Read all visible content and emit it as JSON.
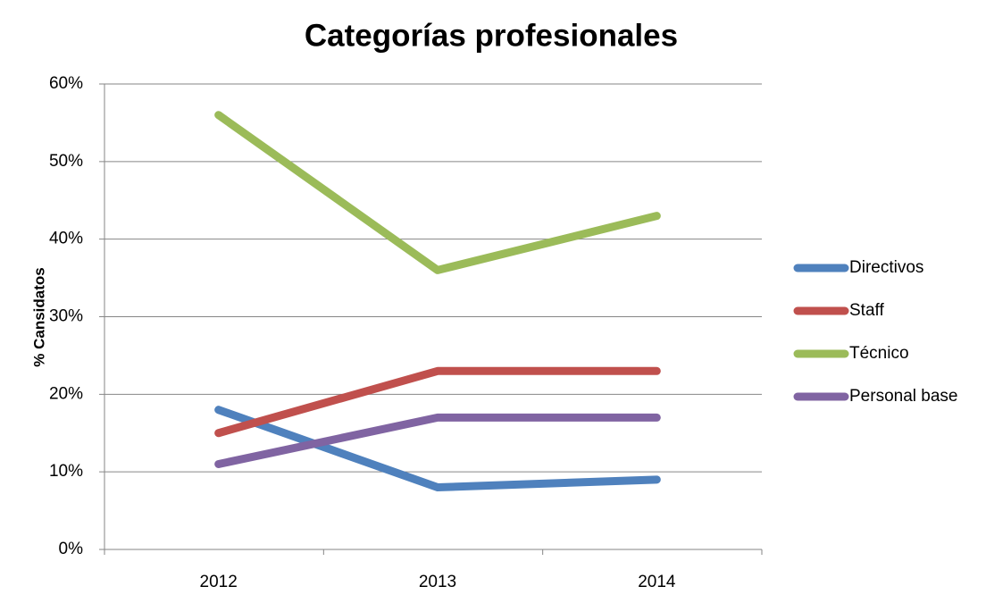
{
  "chart_data": {
    "type": "line",
    "title": "Categorías profesionales",
    "y_label": "% Cansidatos",
    "categories": [
      "2012",
      "2013",
      "2014"
    ],
    "series": [
      {
        "name": "Directivos",
        "color": "#4f81bd",
        "values": [
          18,
          8,
          9
        ]
      },
      {
        "name": "Staff",
        "color": "#c0504d",
        "values": [
          15,
          23,
          23
        ]
      },
      {
        "name": "Técnico",
        "color": "#9bbb59",
        "values": [
          56,
          36,
          43
        ]
      },
      {
        "name": "Personal base",
        "color": "#8064a2",
        "values": [
          11,
          17,
          17
        ]
      }
    ],
    "ylim": [
      0,
      60
    ],
    "yticks": [
      {
        "value": 0,
        "label": "0%"
      },
      {
        "value": 10,
        "label": "10%"
      },
      {
        "value": 20,
        "label": "20%"
      },
      {
        "value": 30,
        "label": "30%"
      },
      {
        "value": 40,
        "label": "40%"
      },
      {
        "value": 50,
        "label": "50%"
      },
      {
        "value": 60,
        "label": "60%"
      }
    ],
    "grid": true,
    "legend": "right"
  }
}
